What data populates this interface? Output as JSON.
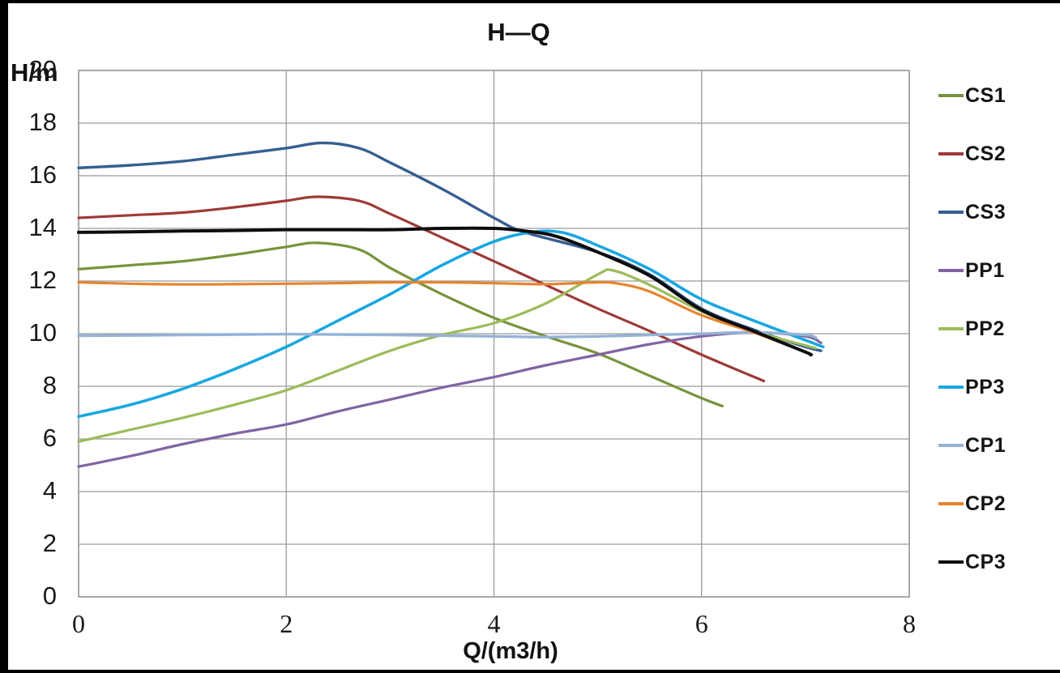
{
  "frame": {
    "background": "#ffffff",
    "edge_color": "#000000"
  },
  "chart_data": {
    "type": "line",
    "title": "H—Q",
    "xlabel": "Q/(m3/h)",
    "ylabel": "H/m",
    "xlim": [
      0,
      8
    ],
    "ylim": [
      0,
      20
    ],
    "xticks": [
      0,
      2,
      4,
      6,
      8
    ],
    "yticks": [
      0,
      2,
      4,
      6,
      8,
      10,
      12,
      14,
      16,
      18,
      20
    ],
    "grid": true,
    "grid_color": "#9a9a9a",
    "legend_position": "right",
    "series": [
      {
        "name": "CS1",
        "color": "#77933C",
        "width": 3.2,
        "points": [
          [
            0,
            12.45
          ],
          [
            0.5,
            12.6
          ],
          [
            1,
            12.75
          ],
          [
            1.5,
            13.0
          ],
          [
            2,
            13.3
          ],
          [
            2.3,
            13.45
          ],
          [
            2.7,
            13.2
          ],
          [
            3,
            12.5
          ],
          [
            3.5,
            11.5
          ],
          [
            4,
            10.6
          ],
          [
            4.5,
            9.9
          ],
          [
            5,
            9.25
          ],
          [
            5.5,
            8.4
          ],
          [
            6,
            7.55
          ],
          [
            6.2,
            7.25
          ]
        ]
      },
      {
        "name": "CS2",
        "color": "#9E3A38",
        "width": 3.2,
        "points": [
          [
            0,
            14.4
          ],
          [
            0.5,
            14.5
          ],
          [
            1,
            14.6
          ],
          [
            1.5,
            14.8
          ],
          [
            2,
            15.05
          ],
          [
            2.3,
            15.2
          ],
          [
            2.7,
            15.05
          ],
          [
            3,
            14.55
          ],
          [
            3.5,
            13.65
          ],
          [
            4,
            12.75
          ],
          [
            4.5,
            11.85
          ],
          [
            5,
            10.95
          ],
          [
            5.5,
            10.1
          ],
          [
            6,
            9.2
          ],
          [
            6.6,
            8.2
          ]
        ]
      },
      {
        "name": "CS3",
        "color": "#365F91",
        "width": 3.4,
        "points": [
          [
            0,
            16.3
          ],
          [
            0.5,
            16.4
          ],
          [
            1,
            16.55
          ],
          [
            1.5,
            16.8
          ],
          [
            2,
            17.05
          ],
          [
            2.35,
            17.25
          ],
          [
            2.7,
            17.05
          ],
          [
            3,
            16.5
          ],
          [
            3.5,
            15.5
          ],
          [
            4,
            14.4
          ],
          [
            4.3,
            13.85
          ],
          [
            5,
            13.1
          ],
          [
            5.5,
            12.25
          ],
          [
            6,
            10.95
          ],
          [
            6.5,
            10.15
          ],
          [
            7,
            9.5
          ],
          [
            7.15,
            9.35
          ]
        ]
      },
      {
        "name": "PP1",
        "color": "#8064A2",
        "width": 3.2,
        "points": [
          [
            0,
            4.95
          ],
          [
            0.5,
            5.35
          ],
          [
            1,
            5.8
          ],
          [
            1.5,
            6.2
          ],
          [
            2,
            6.55
          ],
          [
            2.5,
            7.05
          ],
          [
            3,
            7.5
          ],
          [
            3.5,
            7.95
          ],
          [
            4,
            8.35
          ],
          [
            4.5,
            8.8
          ],
          [
            5,
            9.2
          ],
          [
            5.5,
            9.6
          ],
          [
            6,
            9.9
          ],
          [
            6.5,
            10.05
          ],
          [
            7,
            9.9
          ],
          [
            7.15,
            9.65
          ]
        ]
      },
      {
        "name": "PP2",
        "color": "#9BBB59",
        "width": 3.2,
        "points": [
          [
            0,
            5.9
          ],
          [
            0.5,
            6.35
          ],
          [
            1,
            6.8
          ],
          [
            1.5,
            7.3
          ],
          [
            2,
            7.85
          ],
          [
            2.5,
            8.6
          ],
          [
            3,
            9.35
          ],
          [
            3.5,
            9.95
          ],
          [
            4,
            10.4
          ],
          [
            4.5,
            11.15
          ],
          [
            5,
            12.25
          ],
          [
            5.15,
            12.4
          ],
          [
            5.5,
            11.85
          ],
          [
            6,
            10.85
          ],
          [
            6.5,
            10.1
          ],
          [
            7,
            9.55
          ],
          [
            7.1,
            9.45
          ]
        ]
      },
      {
        "name": "PP3",
        "color": "#19A7E0",
        "width": 3.6,
        "points": [
          [
            0,
            6.85
          ],
          [
            0.5,
            7.3
          ],
          [
            1,
            7.9
          ],
          [
            1.5,
            8.65
          ],
          [
            2,
            9.5
          ],
          [
            2.5,
            10.5
          ],
          [
            3,
            11.5
          ],
          [
            3.5,
            12.6
          ],
          [
            4,
            13.5
          ],
          [
            4.35,
            13.85
          ],
          [
            4.65,
            13.85
          ],
          [
            5,
            13.35
          ],
          [
            5.5,
            12.45
          ],
          [
            6,
            11.3
          ],
          [
            6.5,
            10.5
          ],
          [
            7,
            9.75
          ],
          [
            7.17,
            9.5
          ]
        ]
      },
      {
        "name": "CP1",
        "color": "#95B3D7",
        "width": 3.4,
        "points": [
          [
            0,
            9.92
          ],
          [
            1,
            9.95
          ],
          [
            2,
            9.98
          ],
          [
            3,
            9.95
          ],
          [
            4,
            9.9
          ],
          [
            4.5,
            9.87
          ],
          [
            5,
            9.9
          ],
          [
            5.5,
            9.95
          ],
          [
            6,
            10.0
          ],
          [
            6.5,
            10.05
          ],
          [
            7,
            9.95
          ],
          [
            7.1,
            9.85
          ]
        ]
      },
      {
        "name": "CP2",
        "color": "#E8832E",
        "width": 3.2,
        "points": [
          [
            0,
            11.95
          ],
          [
            0.5,
            11.9
          ],
          [
            1,
            11.87
          ],
          [
            1.5,
            11.88
          ],
          [
            2,
            11.9
          ],
          [
            2.5,
            11.92
          ],
          [
            3,
            11.95
          ],
          [
            3.5,
            11.95
          ],
          [
            4,
            11.92
          ],
          [
            4.5,
            11.88
          ],
          [
            5,
            11.95
          ],
          [
            5.2,
            11.9
          ],
          [
            5.5,
            11.6
          ],
          [
            6,
            10.7
          ],
          [
            6.5,
            10.05
          ],
          [
            7,
            9.3
          ]
        ]
      },
      {
        "name": "CP3",
        "color": "#0D0D0D",
        "width": 4.0,
        "points": [
          [
            0,
            13.85
          ],
          [
            0.5,
            13.87
          ],
          [
            1,
            13.9
          ],
          [
            1.5,
            13.92
          ],
          [
            2,
            13.95
          ],
          [
            2.5,
            13.95
          ],
          [
            3,
            13.95
          ],
          [
            3.5,
            14.0
          ],
          [
            4,
            14.0
          ],
          [
            4.3,
            13.9
          ],
          [
            4.6,
            13.7
          ],
          [
            5,
            13.1
          ],
          [
            5.5,
            12.2
          ],
          [
            6,
            10.9
          ],
          [
            6.5,
            10.1
          ],
          [
            7,
            9.3
          ],
          [
            7.05,
            9.2
          ]
        ]
      }
    ]
  }
}
